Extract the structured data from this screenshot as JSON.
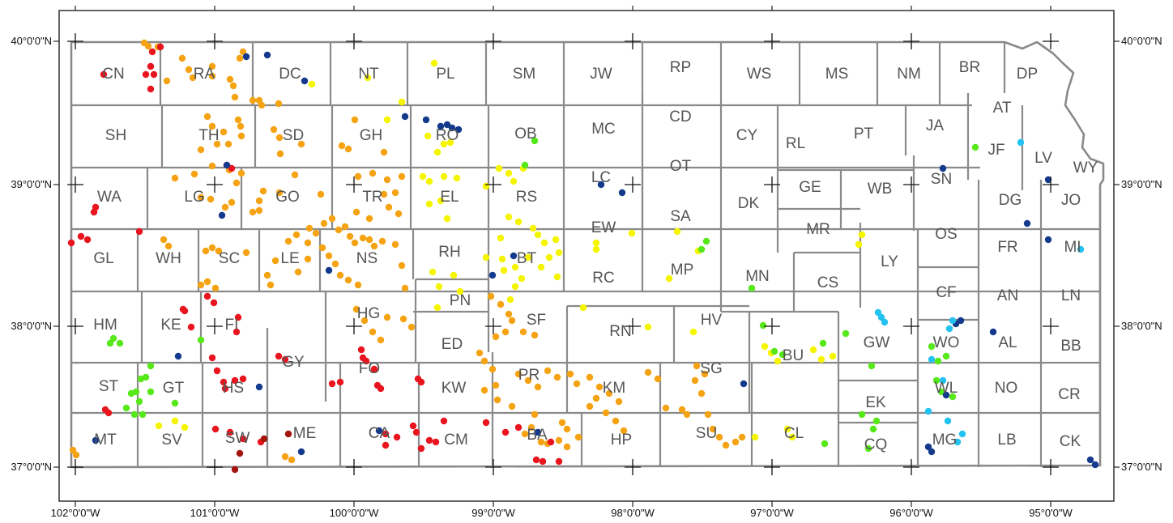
{
  "colors": {
    "county_border": "#8a8a8a",
    "frame": "#222222",
    "label": "#555555",
    "point_red": "#e8141e",
    "point_darkred": "#a1150d",
    "point_orange": "#f5a313",
    "point_yellow": "#f5f500",
    "point_green": "#57e81a",
    "point_navy": "#133a8c",
    "point_cyan": "#23c2f0"
  },
  "axes": {
    "lon_labels": [
      "102°0'0\"W",
      "101°0'0\"W",
      "100°0'0\"W",
      "99°0'0\"W",
      "98°0'0\"W",
      "97°0'0\"W",
      "96°0'0\"W",
      "95°0'0\"W"
    ],
    "lat_labels_left": [
      "40°0'0\"N",
      "39°0'0\"N",
      "38°0'0\"N",
      "37°0'0\"N"
    ],
    "lat_labels_right": [
      "40°0'0\"N",
      "39°0'0\"N",
      "38°0'0\"N",
      "37°0'0\"N"
    ]
  },
  "counties": [
    "CN",
    "RA",
    "DC",
    "NT",
    "PL",
    "SM",
    "JW",
    "RP",
    "WS",
    "MS",
    "NM",
    "BR",
    "DP",
    "AT",
    "SH",
    "TH",
    "SD",
    "GH",
    "RO",
    "OB",
    "MC",
    "CD",
    "CY",
    "RL",
    "PT",
    "JA",
    "JF",
    "LV",
    "WY",
    "WA",
    "LG",
    "GO",
    "TR",
    "EL",
    "RS",
    "LC",
    "OT",
    "DK",
    "GE",
    "WB",
    "SN",
    "DG",
    "JO",
    "EW",
    "SA",
    "MR",
    "OS",
    "GL",
    "WH",
    "SC",
    "LE",
    "NS",
    "RH",
    "BT",
    "MP",
    "RC",
    "MN",
    "CS",
    "LY",
    "FR",
    "MI",
    "HM",
    "KE",
    "FI",
    "HG",
    "PN",
    "SF",
    "RN",
    "HV",
    "CF",
    "AN",
    "LN",
    "GY",
    "ED",
    "BU",
    "GW",
    "WO",
    "AL",
    "BB",
    "ST",
    "GT",
    "HS",
    "FO",
    "KW",
    "PR",
    "KM",
    "SG",
    "WL",
    "NO",
    "CR",
    "EK",
    "MT",
    "SV",
    "SW",
    "ME",
    "CA",
    "CM",
    "BA",
    "HP",
    "SU",
    "CL",
    "CQ",
    "MG",
    "LB",
    "CK"
  ]
}
